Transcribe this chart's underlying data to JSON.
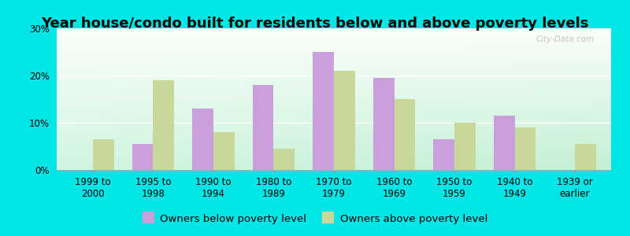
{
  "title": "Year house/condo built for residents below and above poverty levels",
  "categories": [
    "1999 to\n2000",
    "1995 to\n1998",
    "1990 to\n1994",
    "1980 to\n1989",
    "1970 to\n1979",
    "1960 to\n1969",
    "1950 to\n1959",
    "1940 to\n1949",
    "1939 or\nearlier"
  ],
  "below_poverty": [
    0,
    5.5,
    13,
    18,
    25,
    19.5,
    6.5,
    11.5,
    0
  ],
  "above_poverty": [
    6.5,
    19,
    8,
    4.5,
    21,
    15,
    10,
    9,
    5.5
  ],
  "below_color": "#c9a0dc",
  "above_color": "#c8d89a",
  "background_outer": "#00e5e5",
  "ylim": [
    0,
    30
  ],
  "yticks": [
    0,
    10,
    20,
    30
  ],
  "bar_width": 0.35,
  "legend_below_label": "Owners below poverty level",
  "legend_above_label": "Owners above poverty level",
  "title_fontsize": 13,
  "tick_fontsize": 8.5,
  "legend_fontsize": 9.5,
  "watermark": "City-Data.com"
}
